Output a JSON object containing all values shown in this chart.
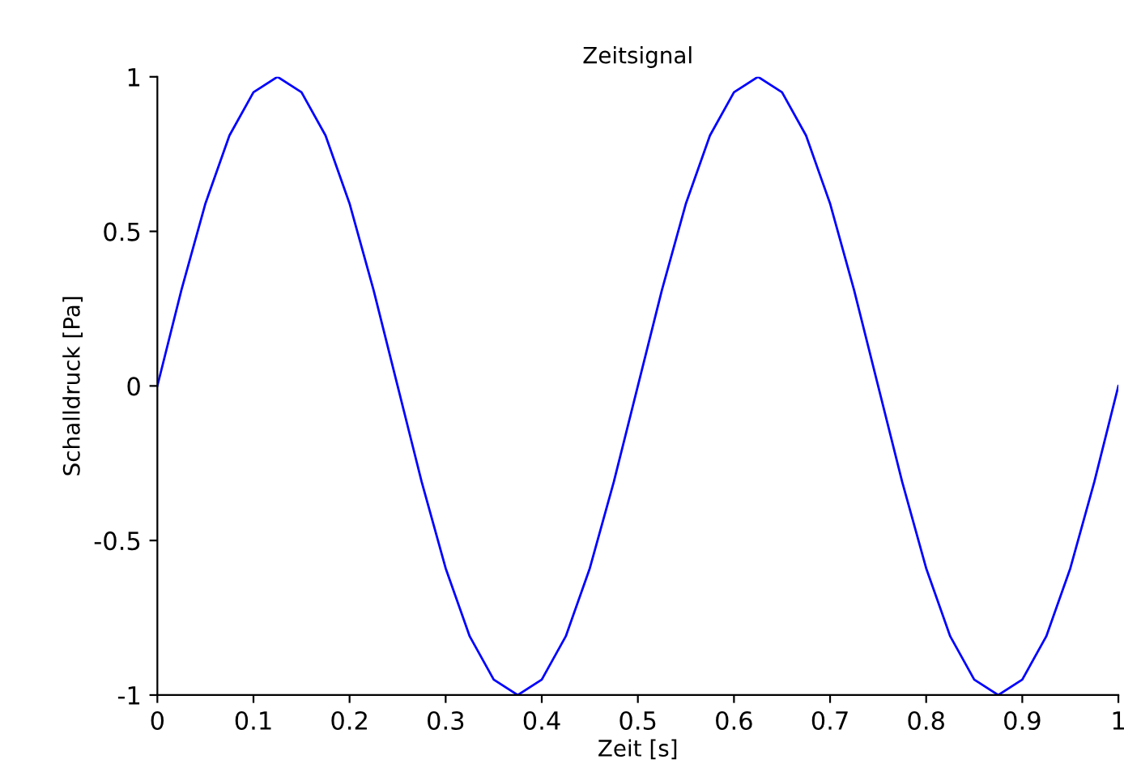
{
  "chart_data": {
    "type": "line",
    "title": "Zeitsignal",
    "xlabel": "Zeit [s]",
    "ylabel": "Schalldruck [Pa]",
    "xlim": [
      0,
      1
    ],
    "ylim": [
      -1,
      1
    ],
    "xticks": [
      0,
      0.1,
      0.2,
      0.3,
      0.4,
      0.5,
      0.6,
      0.7,
      0.8,
      0.9,
      1
    ],
    "yticks": [
      -1,
      -0.5,
      0,
      0.5,
      1
    ],
    "grid": false,
    "legend": false,
    "marker": "none",
    "line_style": "solid",
    "x": [
      0,
      0.025,
      0.05,
      0.075,
      0.1,
      0.125,
      0.15,
      0.175,
      0.2,
      0.225,
      0.25,
      0.275,
      0.3,
      0.325,
      0.35,
      0.375,
      0.4,
      0.425,
      0.45,
      0.475,
      0.5,
      0.525,
      0.55,
      0.575,
      0.6,
      0.625,
      0.65,
      0.675,
      0.7,
      0.725,
      0.75,
      0.775,
      0.8,
      0.825,
      0.85,
      0.875,
      0.9,
      0.925,
      0.95,
      0.975,
      1
    ],
    "series": [
      {
        "color": "#0000ff",
        "values": [
          0,
          0.31,
          0.59,
          0.81,
          0.95,
          1,
          0.95,
          0.81,
          0.59,
          0.31,
          0,
          -0.31,
          -0.59,
          -0.81,
          -0.95,
          -1,
          -0.95,
          -0.81,
          -0.59,
          -0.31,
          0,
          0.31,
          0.59,
          0.81,
          0.95,
          1,
          0.95,
          0.81,
          0.59,
          0.31,
          0,
          -0.31,
          -0.59,
          -0.81,
          -0.95,
          -1,
          -0.95,
          -0.81,
          -0.59,
          -0.31,
          0
        ]
      }
    ]
  }
}
